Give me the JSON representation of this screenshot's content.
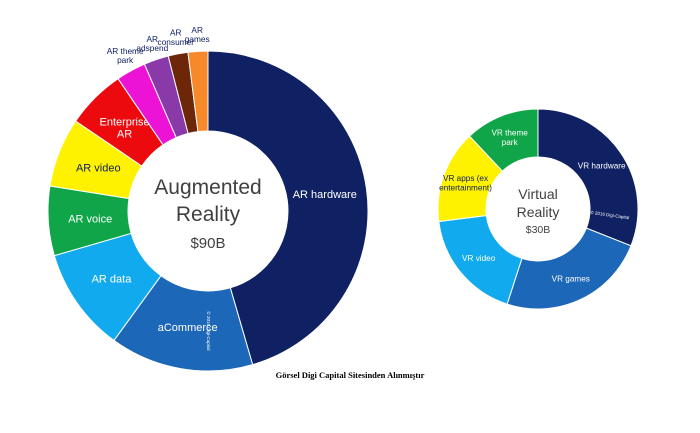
{
  "chart_data": [
    {
      "type": "pie",
      "center_title": [
        "Augmented",
        "Reality"
      ],
      "center_value": "$90B",
      "copyright": "© 2016 Digi-Capital",
      "slices": [
        {
          "label": [
            "AR hardware"
          ],
          "value": 45.5,
          "color": "#0f2163",
          "text_color": "#ffffff",
          "label_pos": "inside"
        },
        {
          "label": [
            "aCommerce"
          ],
          "value": 14.5,
          "color": "#1c67b8",
          "text_color": "#ffffff",
          "label_pos": "inside"
        },
        {
          "label": [
            "AR data"
          ],
          "value": 10.5,
          "color": "#12aaef",
          "text_color": "#ffffff",
          "label_pos": "inside"
        },
        {
          "label": [
            "AR voice"
          ],
          "value": 7.0,
          "color": "#10a548",
          "text_color": "#ffffff",
          "label_pos": "inside"
        },
        {
          "label": [
            "AR video"
          ],
          "value": 7.0,
          "color": "#fff200",
          "text_color": "#0f2163",
          "label_pos": "inside"
        },
        {
          "label": [
            "Enterprise",
            "AR"
          ],
          "value": 6.0,
          "color": "#ec0a0f",
          "text_color": "#ffffff",
          "label_pos": "inside"
        },
        {
          "label": [
            "AR theme",
            "park"
          ],
          "value": 3.0,
          "color": "#ec13d6",
          "text_color": "#0f2163",
          "label_pos": "outside"
        },
        {
          "label": [
            "AR",
            "adspend"
          ],
          "value": 2.5,
          "color": "#8a3aa8",
          "text_color": "#0f2163",
          "label_pos": "outside"
        },
        {
          "label": [
            "AR",
            "consumer"
          ],
          "value": 2.0,
          "color": "#6d2708",
          "text_color": "#0f2163",
          "label_pos": "outside"
        },
        {
          "label": [
            "AR",
            "games"
          ],
          "value": 2.0,
          "color": "#f7892a",
          "text_color": "#0f2163",
          "label_pos": "outside"
        }
      ]
    },
    {
      "type": "pie",
      "center_title": [
        "Virtual",
        "Reality"
      ],
      "center_value": "$30B",
      "copyright": "© 2016 Digi-Capital",
      "slices": [
        {
          "label": [
            "VR hardware"
          ],
          "value": 31,
          "color": "#0f2163",
          "text_color": "#ffffff",
          "label_pos": "inside"
        },
        {
          "label": [
            "VR games"
          ],
          "value": 24,
          "color": "#1c67b8",
          "text_color": "#ffffff",
          "label_pos": "inside"
        },
        {
          "label": [
            "VR video"
          ],
          "value": 18,
          "color": "#12aaef",
          "text_color": "#ffffff",
          "label_pos": "inside"
        },
        {
          "label": [
            "VR apps (ex",
            "entertainment)"
          ],
          "value": 15,
          "color": "#fff200",
          "text_color": "#0f2163",
          "label_pos": "inside"
        },
        {
          "label": [
            "VR theme",
            "park"
          ],
          "value": 12,
          "color": "#10a548",
          "text_color": "#ffffff",
          "label_pos": "inside"
        }
      ]
    }
  ],
  "caption": "Görsel Digi Capital Sitesinden Alınmıştır"
}
